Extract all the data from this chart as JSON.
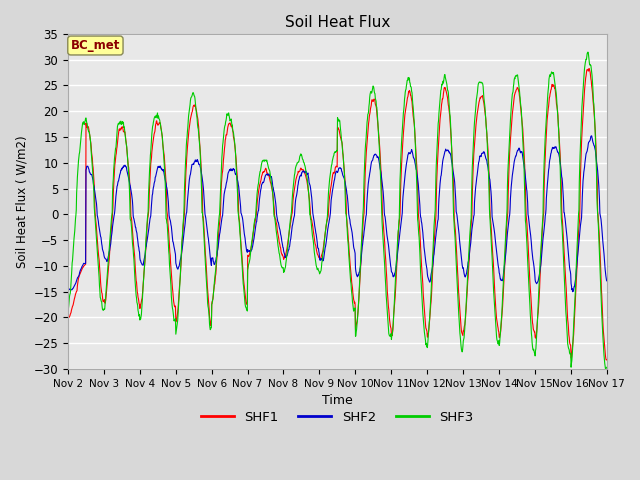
{
  "title": "Soil Heat Flux",
  "ylabel": "Soil Heat Flux ( W/m2)",
  "xlabel": "Time",
  "annotation": "BC_met",
  "ylim": [
    -30,
    35
  ],
  "series_colors": {
    "SHF1": "#ff0000",
    "SHF2": "#0000cc",
    "SHF3": "#00cc00"
  },
  "bg_color": "#d8d8d8",
  "plot_bg_color": "#e8e8e8",
  "grid_color": "#ffffff",
  "xtick_labels": [
    "Nov 2",
    "Nov 3",
    "Nov 4",
    "Nov 5",
    "Nov 6",
    "Nov 7",
    "Nov 8",
    "Nov 9",
    "Nov 10",
    "Nov 11",
    "Nov 12",
    "Nov 13",
    "Nov 14",
    "Nov 15",
    "Nov 16",
    "Nov 17"
  ],
  "days": 15,
  "pts_per_day": 96
}
